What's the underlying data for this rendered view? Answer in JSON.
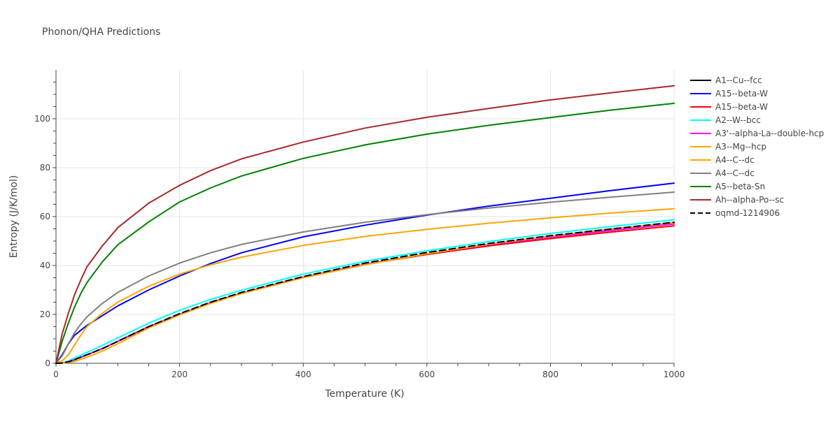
{
  "chart_data": {
    "type": "line",
    "title": "Phonon/QHA Predictions",
    "xlabel": "Temperature (K)",
    "ylabel": "Entropy (J/K/mol)",
    "xlim": [
      0,
      1000
    ],
    "ylim": [
      0,
      120
    ],
    "xticks": [
      0,
      200,
      400,
      600,
      800,
      1000
    ],
    "yticks": [
      0,
      20,
      40,
      60,
      80,
      100
    ],
    "grid": true,
    "legend_position": "right",
    "x": [
      0,
      10,
      20,
      30,
      40,
      50,
      75,
      100,
      150,
      200,
      250,
      300,
      400,
      500,
      600,
      700,
      800,
      900,
      1000
    ],
    "series": [
      {
        "name": "A1--Cu--fcc",
        "color": "#000000",
        "dash": "solid",
        "values": [
          0,
          0.1,
          0.6,
          1.5,
          2.5,
          3.5,
          6,
          9,
          15,
          20,
          24.8,
          28.7,
          35.2,
          40.5,
          44.8,
          48.5,
          51.6,
          54.4,
          57
        ]
      },
      {
        "name": "A15--beta-W",
        "color": "#0000ff",
        "dash": "solid",
        "values": [
          0,
          3.5,
          8,
          11.5,
          13.5,
          15.5,
          19.5,
          23.5,
          30,
          35.7,
          40.8,
          45.2,
          51.7,
          56.5,
          60.6,
          64.3,
          67.5,
          70.7,
          73.7
        ]
      },
      {
        "name": "A15--beta-W",
        "color": "#ff0000",
        "dash": "solid",
        "values": [
          0,
          0.1,
          0.6,
          1.5,
          2.5,
          3.5,
          6,
          9,
          15,
          20,
          24.8,
          28.7,
          35.2,
          40.5,
          44.5,
          48,
          51,
          53.7,
          56.2
        ]
      },
      {
        "name": "A2--W--bcc",
        "color": "#00ffff",
        "dash": "solid",
        "values": [
          0,
          0.2,
          1,
          2.2,
          3.3,
          4.5,
          7.3,
          10.4,
          16.4,
          21.7,
          26.1,
          29.9,
          36.5,
          41.7,
          46,
          49.8,
          53.1,
          56,
          58.7
        ]
      },
      {
        "name": "A3'--alpha-La--double-hcp",
        "color": "#ff00ff",
        "dash": "solid",
        "values": [
          0,
          0.1,
          0.6,
          1.5,
          2.5,
          3.5,
          6,
          9,
          15,
          20,
          24.8,
          28.7,
          35.2,
          40.5,
          44.8,
          48.5,
          51.6,
          54.4,
          57
        ]
      },
      {
        "name": "A3--Mg--hcp",
        "color": "#ffa500",
        "dash": "solid",
        "values": [
          0,
          0.05,
          0.3,
          0.8,
          1.6,
          2.5,
          5,
          8,
          14.5,
          19.8,
          24.5,
          28.5,
          35,
          40.3,
          44.8,
          48.7,
          52,
          55,
          57.5
        ]
      },
      {
        "name": "A4--C--dc",
        "color": "#ffa500",
        "dash": "solid",
        "values": [
          0,
          1,
          3.5,
          7.5,
          11.5,
          15,
          20.5,
          25,
          31.5,
          36.5,
          40.3,
          43.4,
          48.2,
          51.9,
          54.8,
          57.3,
          59.5,
          61.5,
          63.2
        ]
      },
      {
        "name": "A4--C--dc",
        "color": "#808080",
        "dash": "solid",
        "values": [
          0,
          3,
          8,
          12.5,
          16,
          19,
          24.5,
          29,
          35.7,
          41,
          45.2,
          48.6,
          53.7,
          57.7,
          60.8,
          63.5,
          65.9,
          68,
          70
        ]
      },
      {
        "name": "A5--beta-Sn",
        "color": "#008000",
        "dash": "solid",
        "values": [
          0,
          9,
          16.5,
          23,
          28.5,
          33,
          41.5,
          48.5,
          57.8,
          66,
          71.7,
          76.6,
          83.8,
          89.3,
          93.7,
          97.3,
          100.5,
          103.6,
          106.3
        ]
      },
      {
        "name": "Ah--alpha-Po--sc",
        "color": "#a52a2a",
        "dash": "solid",
        "values": [
          0,
          12,
          20.5,
          28,
          34,
          39.5,
          48,
          55.5,
          65.5,
          72.8,
          78.8,
          83.6,
          90.5,
          96.2,
          100.6,
          104.2,
          107.7,
          110.7,
          113.5
        ]
      },
      {
        "name": "oqmd-1214906",
        "color": "#000000",
        "dash": "dash",
        "values": [
          0,
          0.1,
          0.6,
          1.5,
          2.5,
          3.5,
          6,
          9,
          15,
          20.3,
          25,
          29,
          35.5,
          41,
          45.3,
          49,
          52.2,
          55,
          57.7
        ]
      }
    ]
  }
}
